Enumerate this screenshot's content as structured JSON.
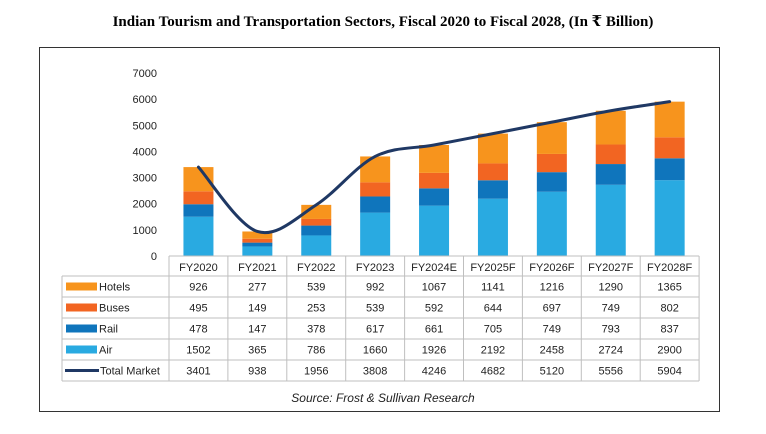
{
  "chart_data": {
    "type": "bar",
    "stacked": true,
    "title": "Indian Tourism and Transportation Sectors, Fiscal 2020 to Fiscal 2028, (In ₹ Billion)",
    "source": "Source: Frost & Sullivan Research",
    "categories": [
      "FY2020",
      "FY2021",
      "FY2022",
      "FY2023",
      "FY2024E",
      "FY2025F",
      "FY2026F",
      "FY2027F",
      "FY2028F"
    ],
    "ylim": [
      0,
      7000
    ],
    "yticks": [
      "7000",
      "6000",
      "5000",
      "4000",
      "3000",
      "2000",
      "1000",
      "0"
    ],
    "series": [
      {
        "name": "Hotels",
        "color": "#f7941d",
        "values": [
          926,
          277,
          539,
          992,
          1067,
          1141,
          1216,
          1290,
          1365
        ]
      },
      {
        "name": "Buses",
        "color": "#f26522",
        "values": [
          495,
          149,
          253,
          539,
          592,
          644,
          697,
          749,
          802
        ]
      },
      {
        "name": "Rail",
        "color": "#0f75bc",
        "values": [
          478,
          147,
          378,
          617,
          661,
          705,
          749,
          793,
          837
        ]
      },
      {
        "name": "Air",
        "color": "#29aae1",
        "values": [
          1502,
          365,
          786,
          1660,
          1926,
          2192,
          2458,
          2724,
          2900
        ]
      }
    ],
    "line": {
      "name": "Total Market",
      "color": "#1f3864",
      "values": [
        3401,
        938,
        1956,
        3808,
        4246,
        4682,
        5120,
        5556,
        5904
      ]
    }
  }
}
